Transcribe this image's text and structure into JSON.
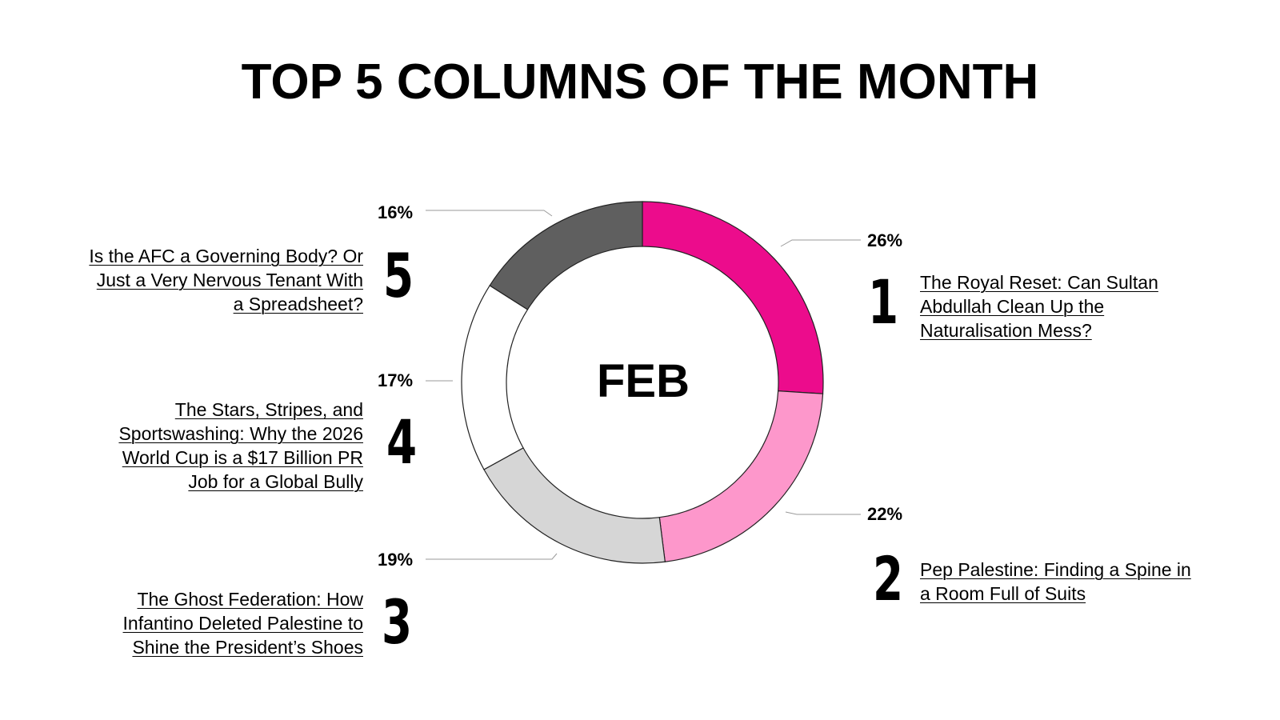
{
  "title": "TOP 5 COLUMNS OF THE MONTH",
  "chart_data": {
    "type": "pie",
    "donut": true,
    "center_label": "FEB",
    "slices": [
      {
        "rank": "1",
        "value": 26,
        "label": "26%",
        "color": "#ec0c8c",
        "title": "The Royal Reset: Can Sultan Abdullah Clean Up the Naturalisation Mess?"
      },
      {
        "rank": "2",
        "value": 22,
        "label": "22%",
        "color": "#fd97cb",
        "title": "Pep Palestine: Finding a Spine in a Room Full of Suits"
      },
      {
        "rank": "3",
        "value": 19,
        "label": "19%",
        "color": "#d6d6d6",
        "title": "The Ghost Federation: How Infantino Deleted Palestine to Shine the President’s Shoes"
      },
      {
        "rank": "4",
        "value": 17,
        "label": "17%",
        "color": "#ffffff",
        "title": "The Stars, Stripes, and Sportswashing: Why the 2026 World Cup is a $17 Billion PR Job for a Global Bully"
      },
      {
        "rank": "5",
        "value": 16,
        "label": "16%",
        "color": "#5f5f5f",
        "title": "Is the AFC a Governing Body? Or Just a Very Nervous Tenant With a Spreadsheet?"
      }
    ]
  }
}
